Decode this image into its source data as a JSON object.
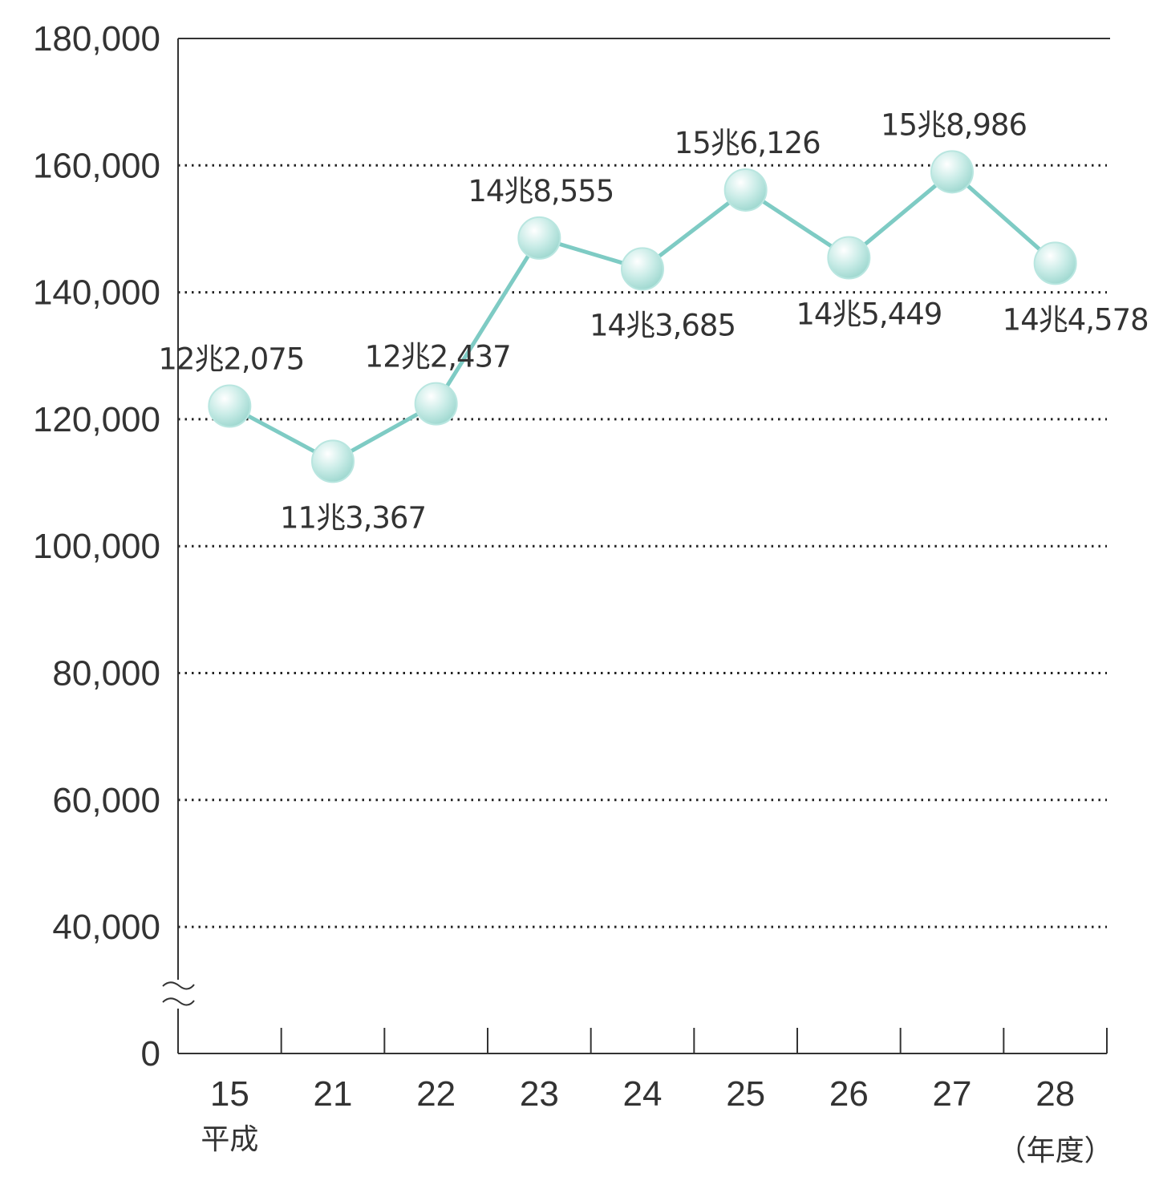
{
  "colors": {
    "line": "#7ecbc4",
    "marker": "#b9e6e0",
    "axis": "#333333",
    "grid": "#222222"
  },
  "chart_data": {
    "type": "line",
    "title": "",
    "xlabel": "",
    "ylabel": "",
    "ylim": [
      0,
      180000
    ],
    "axis_break": true,
    "grid": "horizontal-dotted",
    "y_ticks": [
      "0",
      "40,000",
      "60,000",
      "80,000",
      "100,000",
      "120,000",
      "140,000",
      "160,000",
      "180,000"
    ],
    "categories": [
      "15",
      "21",
      "22",
      "23",
      "24",
      "25",
      "26",
      "27",
      "28"
    ],
    "x_sublabels": {
      "first": "平成",
      "last": "（年度）"
    },
    "series": [
      {
        "values": [
          122075,
          113367,
          122437,
          148555,
          143685,
          156126,
          145449,
          158986,
          144578
        ],
        "labels": [
          "12兆2,075",
          "11兆3,367",
          "12兆2,437",
          "14兆8,555",
          "14兆3,685",
          "15兆6,126",
          "14兆5,449",
          "15兆8,986",
          "14兆4,578"
        ]
      }
    ]
  }
}
